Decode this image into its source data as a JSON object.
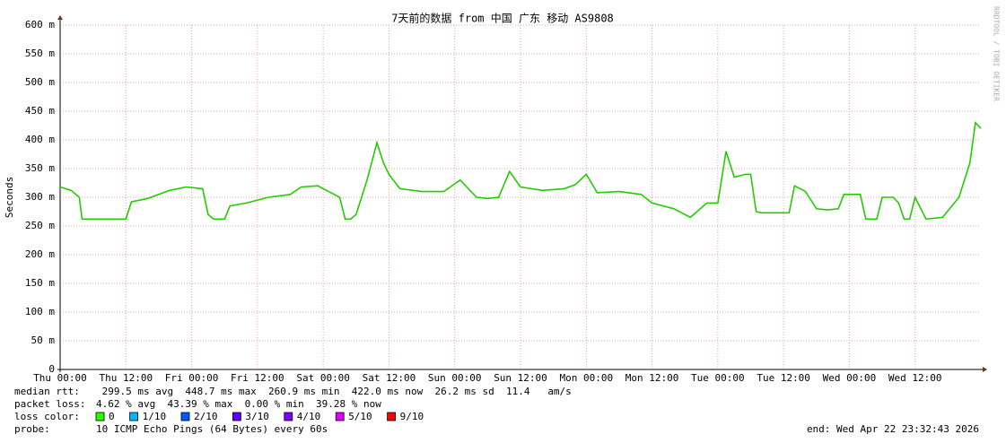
{
  "chart_data": {
    "type": "line",
    "title": "7天前的数据 from 中国 广东 移动 AS9808",
    "ylabel": "Seconds",
    "watermark": "RRDTOOL / TOBI OETIKER",
    "xlim": [
      0,
      168
    ],
    "xticks": [
      {
        "value": 0,
        "label": "Thu 00:00"
      },
      {
        "value": 12,
        "label": "Thu 12:00"
      },
      {
        "value": 24,
        "label": "Fri 00:00"
      },
      {
        "value": 36,
        "label": "Fri 12:00"
      },
      {
        "value": 48,
        "label": "Sat 00:00"
      },
      {
        "value": 60,
        "label": "Sat 12:00"
      },
      {
        "value": 72,
        "label": "Sun 00:00"
      },
      {
        "value": 84,
        "label": "Sun 12:00"
      },
      {
        "value": 96,
        "label": "Mon 00:00"
      },
      {
        "value": 108,
        "label": "Mon 12:00"
      },
      {
        "value": 120,
        "label": "Tue 00:00"
      },
      {
        "value": 132,
        "label": "Tue 12:00"
      },
      {
        "value": 144,
        "label": "Wed 00:00"
      },
      {
        "value": 156,
        "label": "Wed 12:00"
      }
    ],
    "ylim": [
      0,
      600
    ],
    "yticks": [
      0,
      {
        "value": 50,
        "label": "50 m"
      },
      {
        "value": 100,
        "label": "100 m"
      },
      {
        "value": 150,
        "label": "150 m"
      },
      {
        "value": 200,
        "label": "200 m"
      },
      {
        "value": 250,
        "label": "250 m"
      },
      {
        "value": 300,
        "label": "300 m"
      },
      {
        "value": 350,
        "label": "350 m"
      },
      {
        "value": 400,
        "label": "400 m"
      },
      {
        "value": 450,
        "label": "450 m"
      },
      {
        "value": 500,
        "label": "500 m"
      },
      {
        "value": 550,
        "label": "550 m"
      },
      {
        "value": 600,
        "label": "600 m"
      }
    ],
    "grid": true,
    "x": [
      0,
      2,
      3.5,
      4,
      8,
      12,
      13,
      16,
      20,
      23,
      26,
      27,
      28,
      30,
      31,
      34,
      38,
      42,
      44,
      47,
      50,
      51,
      52,
      53,
      54,
      56,
      57.8,
      59,
      60,
      62,
      66,
      70,
      73,
      76,
      78,
      80,
      82,
      84,
      88,
      92,
      94,
      96,
      98,
      102,
      106,
      108,
      112,
      115,
      118,
      120,
      121.5,
      123,
      125,
      126,
      127,
      128,
      133,
      134,
      136,
      138,
      140,
      142,
      143,
      146,
      147,
      149,
      150,
      152,
      153,
      154,
      155,
      156,
      158,
      161,
      164,
      166,
      167,
      168
    ],
    "series": [
      {
        "name": "median rtt",
        "color": "#22cc00",
        "values": [
          318,
          312,
          300,
          262,
          262,
          262,
          292,
          298,
          312,
          318,
          315,
          270,
          262,
          262,
          285,
          290,
          300,
          305,
          318,
          320,
          305,
          300,
          262,
          262,
          270,
          330,
          395,
          360,
          340,
          315,
          310,
          310,
          330,
          300,
          298,
          300,
          345,
          318,
          312,
          315,
          322,
          340,
          308,
          310,
          305,
          290,
          280,
          265,
          290,
          290,
          380,
          335,
          340,
          340,
          275,
          273,
          273,
          320,
          310,
          280,
          278,
          280,
          305,
          305,
          262,
          262,
          300,
          300,
          290,
          262,
          262,
          300,
          262,
          265,
          300,
          360,
          430,
          420
        ]
      }
    ],
    "stats": [
      {
        "label": "median rtt:",
        "text": " 299.5 ms avg  448.7 ms max  260.9 ms min  422.0 ms now  26.2 ms sd  11.4   am/s"
      },
      {
        "label": "packet loss:",
        "text": "4.62 % avg  43.39 % max  0.00 % min  39.28 % now"
      }
    ],
    "loss_color_label": "loss color:",
    "loss_colors": [
      {
        "label": "0",
        "color": "#26ff00"
      },
      {
        "label": "1/10",
        "color": "#00b8ff"
      },
      {
        "label": "2/10",
        "color": "#0059ff"
      },
      {
        "label": "3/10",
        "color": "#5e00ff"
      },
      {
        "label": "4/10",
        "color": "#7e00ff"
      },
      {
        "label": "5/10",
        "color": "#dd00ff"
      },
      {
        "label": "9/10",
        "color": "#ff0000"
      }
    ],
    "probe_label": "probe:",
    "probe": "10 ICMP Echo Pings (64 Bytes) every 60s",
    "end": "end: Wed Apr 22 23:32:43 2026"
  }
}
